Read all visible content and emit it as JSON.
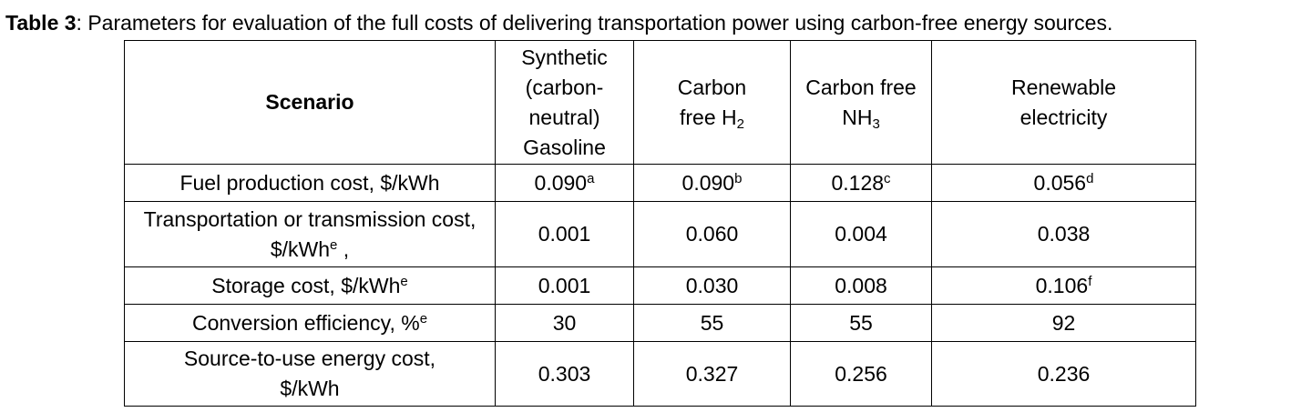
{
  "caption": {
    "label": "Table 3",
    "text": ": Parameters for evaluation of the full costs of delivering transportation power using carbon-free energy sources."
  },
  "header": {
    "scenario": "Scenario",
    "col1": "Synthetic (carbon-neutral) Gasoline",
    "col2_main": "Carbon free H",
    "col2_sub": "2",
    "col3_main": "Carbon free NH",
    "col3_sub": "3",
    "col4": "Renewable electricity"
  },
  "rows": [
    {
      "label": "Fuel production cost, $/kWh",
      "label_sup": "",
      "v1": "0.090",
      "s1": "a",
      "v2": "0.090",
      "s2": "b",
      "v3": "0.128",
      "s3": "c",
      "v4": "0.056",
      "s4": "d"
    },
    {
      "label": "Transportation or transmission cost, $/kWh",
      "label_sup": "e",
      "label_after": " ,",
      "v1": "0.001",
      "s1": "",
      "v2": "0.060",
      "s2": "",
      "v3": "0.004",
      "s3": "",
      "v4": "0.038",
      "s4": ""
    },
    {
      "label": "Storage cost, $/kWh",
      "label_sup": "e",
      "v1": "0.001",
      "s1": "",
      "v2": "0.030",
      "s2": "",
      "v3": "0.008",
      "s3": "",
      "v4": "0.106",
      "s4": "f"
    },
    {
      "label": "Conversion efficiency, %",
      "label_sup": "e",
      "v1": "30",
      "s1": "",
      "v2": "55",
      "s2": "",
      "v3": "55",
      "s3": "",
      "v4": "92",
      "s4": ""
    },
    {
      "label": "Source-to-use energy cost, $/kWh",
      "label_sup": "",
      "v1": "0.303",
      "s1": "",
      "v2": "0.327",
      "s2": "",
      "v3": "0.256",
      "s3": "",
      "v4": "0.236",
      "s4": ""
    }
  ]
}
